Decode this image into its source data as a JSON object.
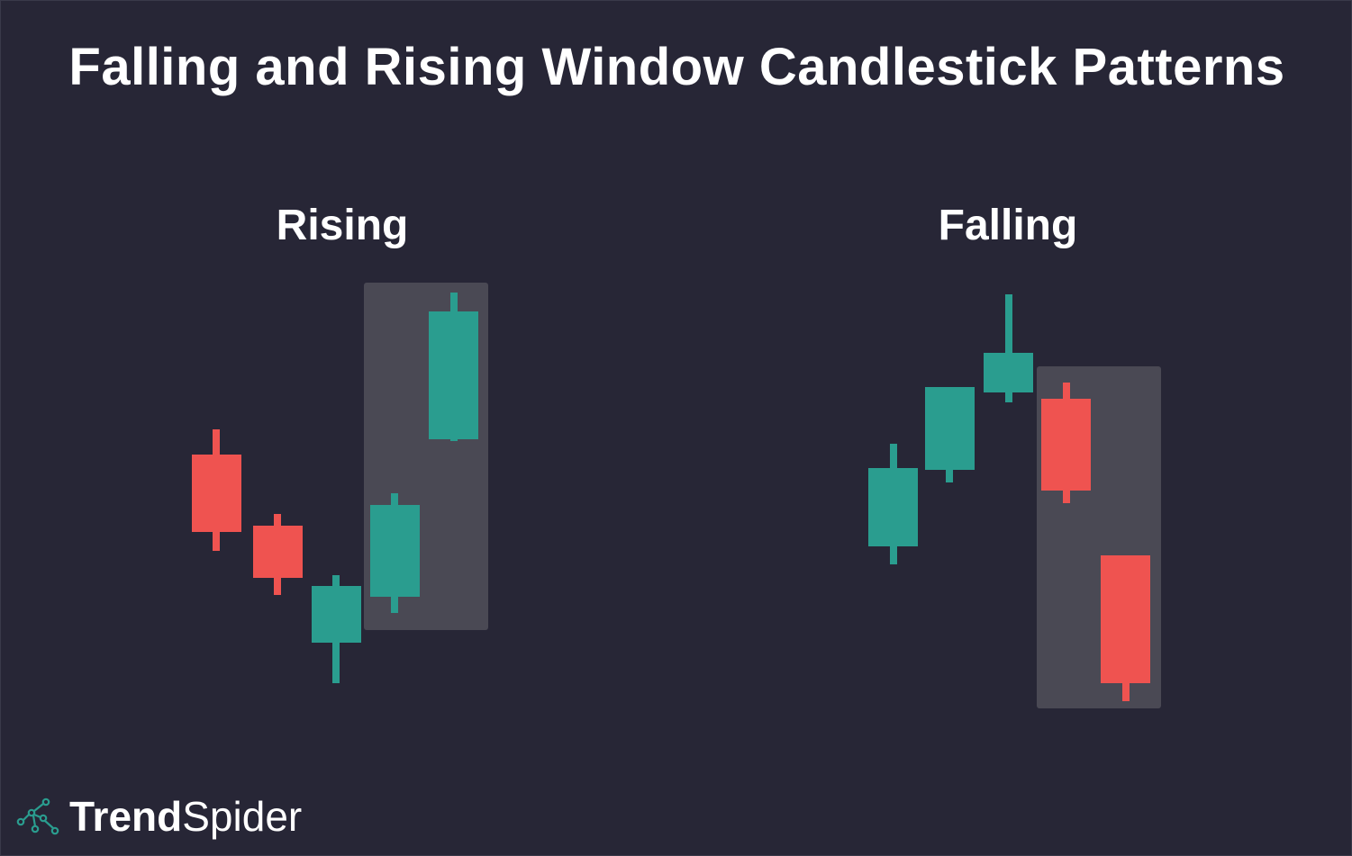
{
  "title": "Falling and Rising Window Candlestick Patterns",
  "panels": {
    "rising": {
      "label": "Rising"
    },
    "falling": {
      "label": "Falling"
    }
  },
  "colors": {
    "background": "#272636",
    "bullish": "#2a9d8f",
    "bearish": "#ef5350",
    "window_highlight": "#4a4954",
    "text": "#ffffff"
  },
  "brand": {
    "name_bold": "Trend",
    "name_light": "Spider",
    "icon": "spider-web-icon"
  }
}
